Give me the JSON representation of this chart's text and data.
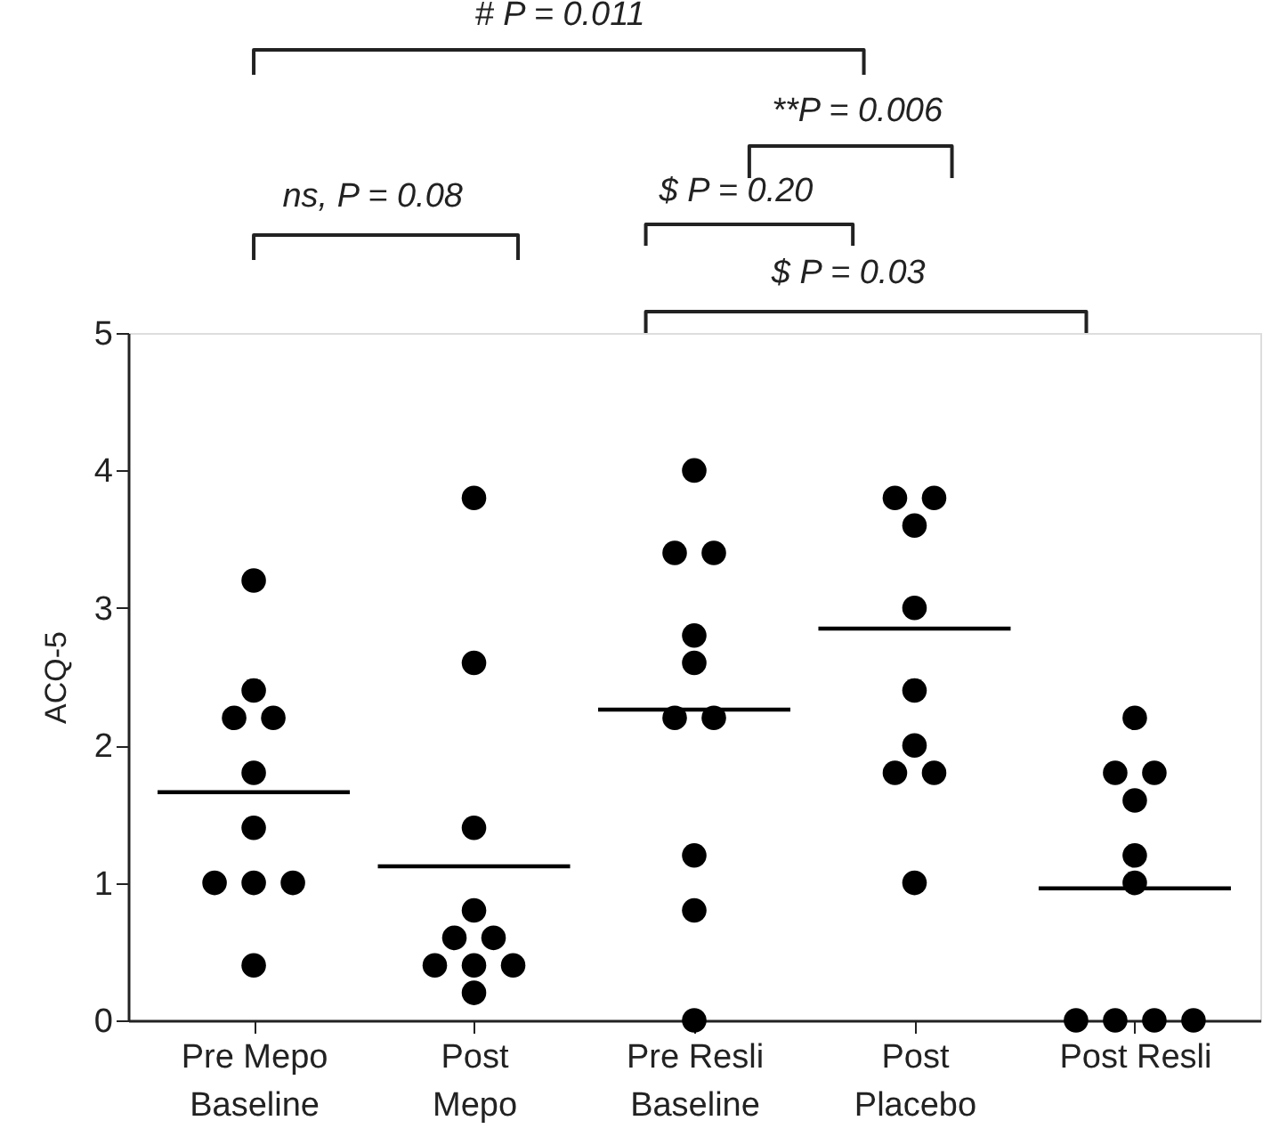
{
  "chart_data": {
    "type": "scatter",
    "ylabel": "ACQ-5",
    "ylim": [
      0,
      5
    ],
    "yticks": [
      0,
      1,
      2,
      3,
      4,
      5
    ],
    "grid": false,
    "legend": false,
    "categories": [
      "Pre Mepo\nBaseline",
      "Post\nMepo",
      "Pre Resli\nBaseline",
      "Post\nPlacebo",
      "Post Resli"
    ],
    "series": [
      {
        "type": "scatter",
        "marker": "circle",
        "color": "#000000",
        "x": [
          "Pre Mepo\nBaseline",
          "Pre Mepo\nBaseline",
          "Pre Mepo\nBaseline",
          "Pre Mepo\nBaseline",
          "Pre Mepo\nBaseline",
          "Pre Mepo\nBaseline",
          "Pre Mepo\nBaseline",
          "Pre Mepo\nBaseline",
          "Pre Mepo\nBaseline",
          "Pre Mepo\nBaseline",
          "Post\nMepo",
          "Post\nMepo",
          "Post\nMepo",
          "Post\nMepo",
          "Post\nMepo",
          "Post\nMepo",
          "Post\nMepo",
          "Post\nMepo",
          "Post\nMepo",
          "Post\nMepo",
          "Pre Resli\nBaseline",
          "Pre Resli\nBaseline",
          "Pre Resli\nBaseline",
          "Pre Resli\nBaseline",
          "Pre Resli\nBaseline",
          "Pre Resli\nBaseline",
          "Pre Resli\nBaseline",
          "Pre Resli\nBaseline",
          "Pre Resli\nBaseline",
          "Pre Resli\nBaseline",
          "Post\nPlacebo",
          "Post\nPlacebo",
          "Post\nPlacebo",
          "Post\nPlacebo",
          "Post\nPlacebo",
          "Post\nPlacebo",
          "Post\nPlacebo",
          "Post\nPlacebo",
          "Post\nPlacebo",
          "Post Resli",
          "Post Resli",
          "Post Resli",
          "Post Resli",
          "Post Resli",
          "Post Resli",
          "Post Resli",
          "Post Resli",
          "Post Resli",
          "Post Resli"
        ],
        "values": [
          3.2,
          2.4,
          2.2,
          2.2,
          1.8,
          1.4,
          1.0,
          1.0,
          1.0,
          0.4,
          3.8,
          2.6,
          1.4,
          0.8,
          0.6,
          0.6,
          0.4,
          0.4,
          0.4,
          0.2,
          4.0,
          3.4,
          3.4,
          2.8,
          2.6,
          2.2,
          2.2,
          1.2,
          0.8,
          0.0,
          3.8,
          3.8,
          3.6,
          3.0,
          2.4,
          2.0,
          1.8,
          1.8,
          1.0,
          2.2,
          1.8,
          1.8,
          1.6,
          1.2,
          1.0,
          0.0,
          0.0,
          0.0,
          0.0
        ]
      },
      {
        "type": "bar",
        "color": "#000000",
        "x": [
          "Pre Mepo\nBaseline",
          "Post\nMepo",
          "Pre Resli\nBaseline",
          "Post\nPlacebo",
          "Post Resli"
        ],
        "base": [
          1.66,
          1.12,
          2.26,
          2.85,
          0.96
        ],
        "values": [
          0,
          0,
          0,
          0,
          0
        ]
      }
    ],
    "annotations": [
      "# P = 0.011",
      "**P = 0.006",
      "ns, P = 0.08",
      "$ P = 0.20",
      "$ P = 0.03"
    ]
  }
}
